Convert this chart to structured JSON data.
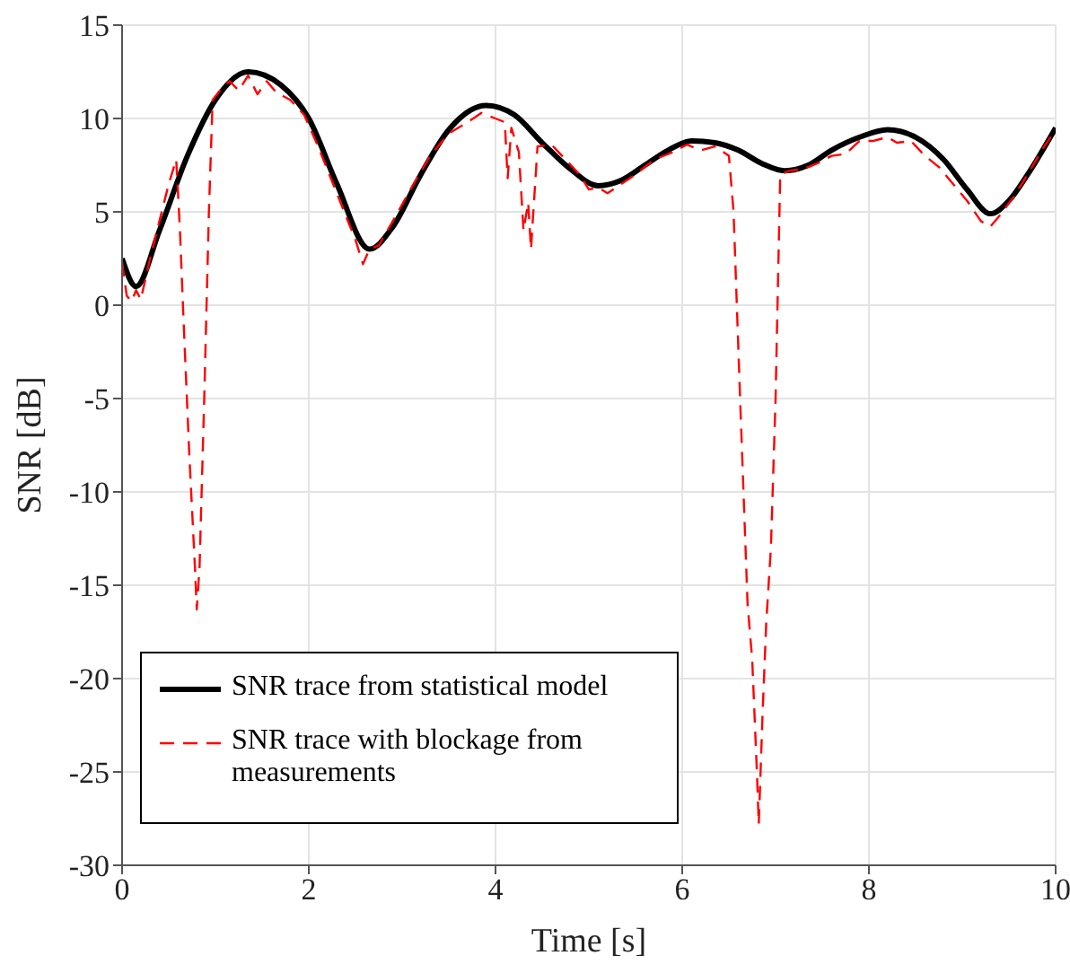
{
  "chart_data": {
    "type": "line",
    "xlabel": "Time [s]",
    "ylabel": "SNR [dB]",
    "xlim": [
      0,
      10
    ],
    "xticks": [
      0,
      2,
      4,
      6,
      8,
      10
    ],
    "ylim": [
      -30,
      15
    ],
    "yticks": [
      -30,
      -25,
      -20,
      -15,
      -10,
      -5,
      0,
      5,
      10,
      15
    ],
    "grid": true,
    "legend": "bottom left",
    "marker": "none",
    "series": [
      {
        "name": "SNR trace from statistical model",
        "color": "#000000",
        "line_style": "solid",
        "x": [
          0,
          0.15,
          0.4,
          0.7,
          1.0,
          1.35,
          1.7,
          2.0,
          2.3,
          2.65,
          2.9,
          3.2,
          3.5,
          3.9,
          4.2,
          4.5,
          4.8,
          5.1,
          5.35,
          5.6,
          5.85,
          6.1,
          6.35,
          6.6,
          6.85,
          7.1,
          7.35,
          7.6,
          7.9,
          8.2,
          8.5,
          8.8,
          9.05,
          9.3,
          9.5,
          9.7,
          10
        ],
        "values": [
          2.5,
          1.0,
          4.0,
          8.0,
          11.0,
          12.5,
          11.8,
          10.0,
          6.5,
          3.0,
          4.2,
          7.0,
          9.4,
          10.7,
          10.2,
          8.7,
          7.3,
          6.4,
          6.7,
          7.5,
          8.3,
          8.8,
          8.7,
          8.3,
          7.6,
          7.2,
          7.5,
          8.3,
          9.0,
          9.4,
          9.0,
          7.8,
          6.2,
          4.9,
          5.6,
          7.0,
          9.5
        ]
      },
      {
        "name": "SNR trace with blockage from measurements",
        "color": "#ff0000",
        "line_style": "dashed",
        "x": [
          0,
          0.05,
          0.1,
          0.15,
          0.2,
          0.3,
          0.4,
          0.5,
          0.58,
          0.62,
          0.66,
          0.72,
          0.78,
          0.8,
          0.83,
          0.88,
          0.93,
          0.97,
          1.05,
          1.15,
          1.25,
          1.35,
          1.45,
          1.55,
          1.65,
          1.8,
          1.95,
          2.1,
          2.3,
          2.5,
          2.58,
          2.65,
          2.75,
          2.9,
          3.1,
          3.3,
          3.5,
          3.7,
          3.85,
          4.0,
          4.1,
          4.13,
          4.17,
          4.25,
          4.3,
          4.35,
          4.38,
          4.45,
          4.6,
          4.75,
          4.9,
          5.0,
          5.1,
          5.2,
          5.35,
          5.5,
          5.7,
          5.9,
          6.05,
          6.2,
          6.35,
          6.5,
          6.55,
          6.62,
          6.7,
          6.75,
          6.8,
          6.82,
          6.86,
          6.9,
          6.95,
          7.0,
          7.05,
          7.15,
          7.3,
          7.45,
          7.6,
          7.75,
          7.9,
          8.05,
          8.2,
          8.3,
          8.45,
          8.6,
          8.75,
          8.9,
          9.05,
          9.2,
          9.3,
          9.4,
          9.55,
          9.7,
          9.85,
          10
        ],
        "values": [
          2.3,
          0.5,
          0.2,
          0.8,
          0.3,
          2.5,
          4.5,
          6.5,
          7.8,
          4,
          -1,
          -8,
          -14,
          -16.3,
          -14,
          -5,
          5,
          11,
          11.5,
          12,
          11.5,
          12.3,
          11.3,
          12,
          11.4,
          11,
          10.2,
          8.5,
          6,
          3.5,
          2.2,
          3,
          3.2,
          4.5,
          6.3,
          8,
          9.2,
          9.8,
          10.3,
          10,
          9.8,
          6.8,
          9.5,
          8.2,
          4,
          5.5,
          3,
          8.5,
          8.6,
          7.8,
          7,
          6.2,
          6.3,
          6,
          6.5,
          7,
          7.8,
          8.2,
          8.6,
          8.3,
          8.5,
          8,
          5,
          -5,
          -16,
          -19,
          -25,
          -27.8,
          -22,
          -17,
          -13,
          -5,
          7,
          7.2,
          7.3,
          7.6,
          8,
          8.1,
          8.8,
          8.8,
          9,
          8.7,
          8.8,
          8,
          7.4,
          6.5,
          5.6,
          4.5,
          4.2,
          4.8,
          5.8,
          7,
          8.3,
          9.4
        ]
      }
    ]
  }
}
